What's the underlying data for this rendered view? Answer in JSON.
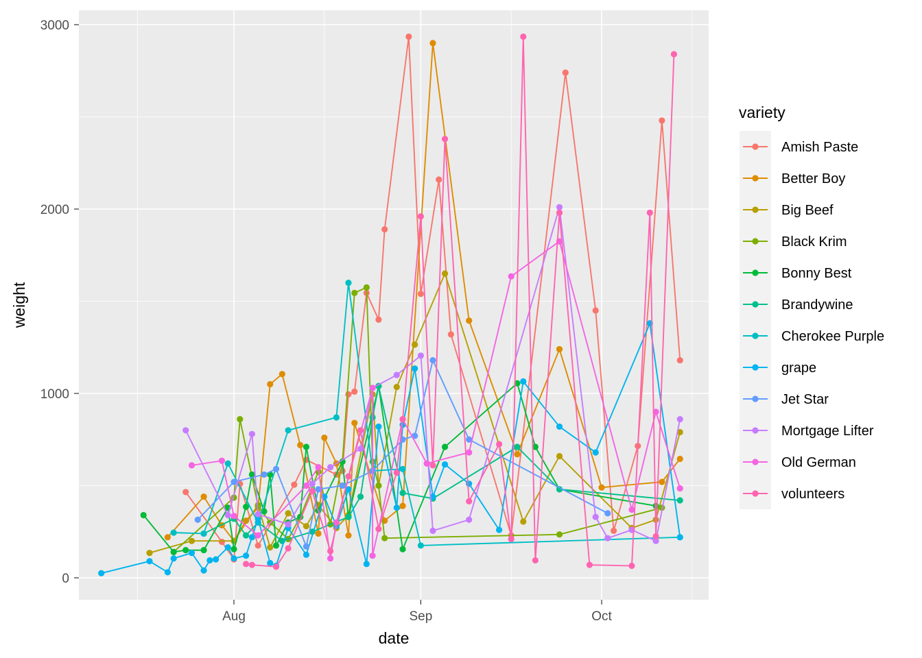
{
  "chart_data": {
    "type": "line",
    "xlabel": "date",
    "ylabel": "weight",
    "x_ticks": [
      "Aug",
      "Sep",
      "Oct"
    ],
    "y_ticks": [
      0,
      1000,
      2000,
      3000
    ],
    "xlim": [
      "Jul 08",
      "Oct 17"
    ],
    "ylim": [
      -120,
      3080
    ],
    "grid": true,
    "legend": {
      "title": "variety",
      "placement": "right"
    },
    "series": [
      {
        "name": "Amish Paste",
        "color": "#F8766D",
        "points": [
          [
            "Jul 24",
            465
          ],
          [
            "Jul 30",
            195
          ],
          [
            "Aug 01",
            100
          ],
          [
            "Aug 02",
            510
          ],
          [
            "Aug 05",
            175
          ],
          [
            "Aug 11",
            505
          ],
          [
            "Aug 13",
            640
          ],
          [
            "Aug 18",
            560
          ],
          [
            "Aug 19",
            580
          ],
          [
            "Aug 20",
            995
          ],
          [
            "Aug 21",
            1010
          ],
          [
            "Aug 23",
            1545
          ],
          [
            "Aug 25",
            1400
          ],
          [
            "Aug 26",
            1890
          ],
          [
            "Aug 30",
            2935
          ],
          [
            "Sep 01",
            1540
          ],
          [
            "Sep 04",
            2160
          ],
          [
            "Sep 06",
            1320
          ],
          [
            "Sep 16",
            230
          ],
          [
            "Sep 25",
            2740
          ],
          [
            "Sep 30",
            1450
          ],
          [
            "Oct 03",
            255
          ],
          [
            "Oct 07",
            715
          ],
          [
            "Oct 11",
            2480
          ],
          [
            "Oct 14",
            1180
          ]
        ]
      },
      {
        "name": "Better Boy",
        "color": "#DE8C00",
        "points": [
          [
            "Jul 21",
            220
          ],
          [
            "Jul 27",
            440
          ],
          [
            "Jul 30",
            285
          ],
          [
            "Aug 01",
            200
          ],
          [
            "Aug 03",
            310
          ],
          [
            "Aug 05",
            380
          ],
          [
            "Aug 07",
            1050
          ],
          [
            "Aug 09",
            1105
          ],
          [
            "Aug 12",
            720
          ],
          [
            "Aug 15",
            240
          ],
          [
            "Aug 16",
            760
          ],
          [
            "Aug 18",
            620
          ],
          [
            "Aug 20",
            230
          ],
          [
            "Aug 21",
            840
          ],
          [
            "Aug 26",
            310
          ],
          [
            "Aug 29",
            390
          ],
          [
            "Sep 03",
            2900
          ],
          [
            "Sep 09",
            1395
          ],
          [
            "Sep 17",
            670
          ],
          [
            "Sep 24",
            1240
          ],
          [
            "Oct 01",
            490
          ],
          [
            "Oct 11",
            520
          ],
          [
            "Oct 14",
            645
          ]
        ]
      },
      {
        "name": "Big Beef",
        "color": "#B79F00",
        "points": [
          [
            "Jul 18",
            135
          ],
          [
            "Jul 25",
            200
          ],
          [
            "Aug 01",
            200
          ],
          [
            "Aug 05",
            395
          ],
          [
            "Aug 07",
            165
          ],
          [
            "Aug 10",
            350
          ],
          [
            "Aug 13",
            280
          ],
          [
            "Aug 15",
            395
          ],
          [
            "Aug 18",
            270
          ],
          [
            "Aug 20",
            340
          ],
          [
            "Aug 24",
            995
          ],
          [
            "Aug 25",
            500
          ],
          [
            "Aug 28",
            1035
          ],
          [
            "Aug 31",
            1265
          ],
          [
            "Sep 05",
            1650
          ],
          [
            "Sep 18",
            305
          ],
          [
            "Sep 24",
            660
          ],
          [
            "Oct 06",
            270
          ],
          [
            "Oct 10",
            315
          ],
          [
            "Oct 14",
            790
          ]
        ]
      },
      {
        "name": "Black Krim",
        "color": "#7CAE00",
        "points": [
          [
            "Jul 22",
            140
          ],
          [
            "Aug 01",
            435
          ],
          [
            "Aug 02",
            860
          ],
          [
            "Aug 05",
            390
          ],
          [
            "Aug 07",
            300
          ],
          [
            "Aug 10",
            210
          ],
          [
            "Aug 12",
            330
          ],
          [
            "Aug 15",
            575
          ],
          [
            "Aug 17",
            290
          ],
          [
            "Aug 19",
            630
          ],
          [
            "Aug 21",
            1545
          ],
          [
            "Aug 23",
            1575
          ],
          [
            "Aug 24",
            630
          ],
          [
            "Aug 25",
            500
          ],
          [
            "Aug 26",
            215
          ],
          [
            "Sep 24",
            235
          ],
          [
            "Oct 11",
            380
          ]
        ]
      },
      {
        "name": "Bonny Best",
        "color": "#00BA38",
        "points": [
          [
            "Jul 17",
            340
          ],
          [
            "Jul 22",
            140
          ],
          [
            "Jul 24",
            150
          ],
          [
            "Jul 27",
            150
          ],
          [
            "Jul 31",
            380
          ],
          [
            "Aug 01",
            155
          ],
          [
            "Aug 03",
            385
          ],
          [
            "Aug 04",
            560
          ],
          [
            "Aug 06",
            360
          ],
          [
            "Aug 07",
            560
          ],
          [
            "Aug 08",
            175
          ],
          [
            "Aug 10",
            300
          ],
          [
            "Aug 12",
            330
          ],
          [
            "Aug 13",
            710
          ],
          [
            "Aug 15",
            365
          ],
          [
            "Aug 19",
            630
          ],
          [
            "Aug 20",
            330
          ],
          [
            "Aug 25",
            1040
          ],
          [
            "Aug 29",
            155
          ],
          [
            "Sep 05",
            710
          ],
          [
            "Sep 17",
            1055
          ],
          [
            "Sep 20",
            710
          ],
          [
            "Sep 24",
            480
          ],
          [
            "Oct 10",
            390
          ]
        ]
      },
      {
        "name": "Brandywine",
        "color": "#00C08B",
        "points": [
          [
            "Jul 27",
            240
          ],
          [
            "Aug 01",
            320
          ],
          [
            "Aug 03",
            230
          ],
          [
            "Aug 05",
            300
          ],
          [
            "Aug 09",
            200
          ],
          [
            "Aug 14",
            250
          ],
          [
            "Aug 20",
            330
          ],
          [
            "Aug 22",
            440
          ],
          [
            "Aug 24",
            870
          ],
          [
            "Aug 25",
            1040
          ],
          [
            "Aug 29",
            460
          ],
          [
            "Sep 03",
            430
          ],
          [
            "Sep 17",
            710
          ],
          [
            "Sep 24",
            480
          ],
          [
            "Oct 14",
            420
          ]
        ]
      },
      {
        "name": "Cherokee Purple",
        "color": "#00BFC4",
        "points": [
          [
            "Jul 22",
            245
          ],
          [
            "Jul 27",
            240
          ],
          [
            "Jul 31",
            620
          ],
          [
            "Aug 05",
            300
          ],
          [
            "Aug 10",
            800
          ],
          [
            "Aug 18",
            870
          ],
          [
            "Aug 20",
            1600
          ],
          [
            "Aug 24",
            580
          ],
          [
            "Aug 29",
            590
          ],
          [
            "Sep 01",
            175
          ],
          [
            "Oct 14",
            220
          ]
        ]
      },
      {
        "name": "grape",
        "color": "#00B4F0",
        "points": [
          [
            "Jul 10",
            25
          ],
          [
            "Jul 18",
            90
          ],
          [
            "Jul 21",
            30
          ],
          [
            "Jul 22",
            105
          ],
          [
            "Jul 25",
            135
          ],
          [
            "Jul 27",
            40
          ],
          [
            "Jul 28",
            95
          ],
          [
            "Jul 29",
            100
          ],
          [
            "Jul 31",
            165
          ],
          [
            "Aug 01",
            105
          ],
          [
            "Aug 03",
            120
          ],
          [
            "Aug 04",
            220
          ],
          [
            "Aug 05",
            320
          ],
          [
            "Aug 07",
            80
          ],
          [
            "Aug 08",
            65
          ],
          [
            "Aug 10",
            270
          ],
          [
            "Aug 13",
            125
          ],
          [
            "Aug 16",
            440
          ],
          [
            "Aug 18",
            280
          ],
          [
            "Aug 20",
            480
          ],
          [
            "Aug 23",
            75
          ],
          [
            "Aug 25",
            820
          ],
          [
            "Aug 28",
            380
          ],
          [
            "Aug 29",
            830
          ],
          [
            "Aug 31",
            1135
          ],
          [
            "Sep 03",
            440
          ],
          [
            "Sep 05",
            615
          ],
          [
            "Sep 09",
            510
          ],
          [
            "Sep 14",
            260
          ],
          [
            "Sep 18",
            1065
          ],
          [
            "Sep 24",
            820
          ],
          [
            "Sep 30",
            680
          ],
          [
            "Oct 09",
            1380
          ],
          [
            "Oct 14",
            220
          ]
        ]
      },
      {
        "name": "Jet Star",
        "color": "#619CFF",
        "points": [
          [
            "Jul 26",
            315
          ],
          [
            "Aug 01",
            520
          ],
          [
            "Aug 06",
            560
          ],
          [
            "Aug 08",
            590
          ],
          [
            "Aug 13",
            170
          ],
          [
            "Aug 15",
            480
          ],
          [
            "Aug 19",
            500
          ],
          [
            "Aug 24",
            580
          ],
          [
            "Aug 29",
            750
          ],
          [
            "Aug 31",
            770
          ],
          [
            "Sep 03",
            1180
          ],
          [
            "Sep 09",
            750
          ],
          [
            "Oct 02",
            350
          ]
        ]
      },
      {
        "name": "Mortgage Lifter",
        "color": "#C77CFF",
        "points": [
          [
            "Jul 24",
            800
          ],
          [
            "Jul 31",
            340
          ],
          [
            "Aug 04",
            780
          ],
          [
            "Aug 05",
            345
          ],
          [
            "Aug 10",
            290
          ],
          [
            "Aug 14",
            510
          ],
          [
            "Aug 17",
            600
          ],
          [
            "Aug 22",
            700
          ],
          [
            "Aug 24",
            1030
          ],
          [
            "Aug 28",
            1100
          ],
          [
            "Sep 01",
            1205
          ],
          [
            "Sep 03",
            255
          ],
          [
            "Sep 09",
            315
          ],
          [
            "Sep 24",
            2010
          ],
          [
            "Sep 30",
            330
          ],
          [
            "Oct 02",
            215
          ],
          [
            "Oct 06",
            260
          ],
          [
            "Oct 10",
            200
          ],
          [
            "Oct 14",
            860
          ]
        ]
      },
      {
        "name": "Old German",
        "color": "#F564E3",
        "points": [
          [
            "Jul 25",
            610
          ],
          [
            "Jul 30",
            635
          ],
          [
            "Aug 01",
            335
          ],
          [
            "Aug 05",
            230
          ],
          [
            "Aug 13",
            500
          ],
          [
            "Aug 15",
            600
          ],
          [
            "Aug 17",
            105
          ],
          [
            "Aug 18",
            300
          ],
          [
            "Aug 24",
            1030
          ],
          [
            "Aug 24",
            120
          ],
          [
            "Aug 29",
            860
          ],
          [
            "Sep 02",
            620
          ],
          [
            "Sep 09",
            680
          ],
          [
            "Sep 16",
            1635
          ],
          [
            "Sep 24",
            1825
          ],
          [
            "Oct 06",
            370
          ],
          [
            "Oct 10",
            900
          ],
          [
            "Oct 14",
            485
          ]
        ]
      },
      {
        "name": "volunteers",
        "color": "#FF64B0",
        "points": [
          [
            "Aug 03",
            75
          ],
          [
            "Aug 04",
            70
          ],
          [
            "Aug 08",
            60
          ],
          [
            "Aug 10",
            160
          ],
          [
            "Aug 14",
            470
          ],
          [
            "Aug 17",
            145
          ],
          [
            "Aug 20",
            550
          ],
          [
            "Aug 22",
            800
          ],
          [
            "Aug 25",
            265
          ],
          [
            "Aug 28",
            570
          ],
          [
            "Aug 29",
            860
          ],
          [
            "Sep 01",
            1960
          ],
          [
            "Sep 03",
            610
          ],
          [
            "Sep 05",
            2380
          ],
          [
            "Sep 09",
            415
          ],
          [
            "Sep 14",
            725
          ],
          [
            "Sep 16",
            210
          ],
          [
            "Sep 18",
            2935
          ],
          [
            "Sep 20",
            95
          ],
          [
            "Sep 24",
            1980
          ],
          [
            "Sep 29",
            70
          ],
          [
            "Oct 06",
            65
          ],
          [
            "Oct 09",
            1980
          ],
          [
            "Oct 10",
            225
          ],
          [
            "Oct 13",
            2840
          ]
        ]
      }
    ]
  }
}
